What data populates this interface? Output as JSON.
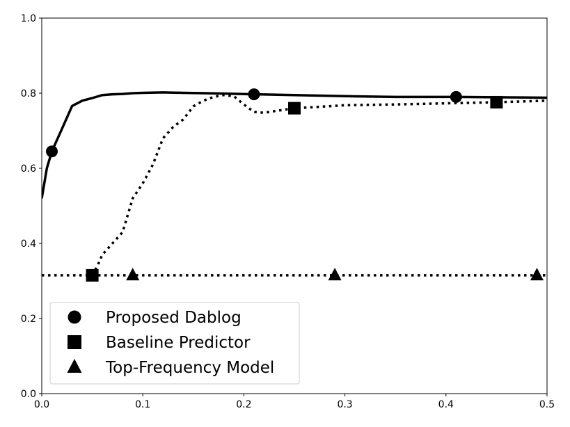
{
  "chart_data": {
    "type": "line",
    "title": "",
    "xlabel": "",
    "ylabel": "",
    "xlim": [
      0.0,
      0.5
    ],
    "ylim": [
      0.0,
      1.0
    ],
    "grid": false,
    "legend_position": "lower-left",
    "x_ticks": [
      {
        "value": 0.0,
        "label": "0.0"
      },
      {
        "value": 0.1,
        "label": "0.1"
      },
      {
        "value": 0.2,
        "label": "0.2"
      },
      {
        "value": 0.3,
        "label": "0.3"
      },
      {
        "value": 0.4,
        "label": "0.4"
      },
      {
        "value": 0.5,
        "label": "0.5"
      }
    ],
    "y_ticks": [
      {
        "value": 0.0,
        "label": "0.0"
      },
      {
        "value": 0.2,
        "label": "0.2"
      },
      {
        "value": 0.4,
        "label": "0.4"
      },
      {
        "value": 0.6,
        "label": "0.6"
      },
      {
        "value": 0.8,
        "label": "0.8"
      },
      {
        "value": 1.0,
        "label": "1.0"
      }
    ],
    "series": [
      {
        "name": "Proposed Dablog",
        "line_style": "solid",
        "marker": "circle",
        "color": "#000000",
        "points": [
          [
            0.0,
            0.52
          ],
          [
            0.005,
            0.6
          ],
          [
            0.01,
            0.645
          ],
          [
            0.02,
            0.705
          ],
          [
            0.03,
            0.766
          ],
          [
            0.04,
            0.78
          ],
          [
            0.05,
            0.787
          ],
          [
            0.06,
            0.795
          ],
          [
            0.07,
            0.797
          ],
          [
            0.08,
            0.798
          ],
          [
            0.09,
            0.8
          ],
          [
            0.1,
            0.801
          ],
          [
            0.12,
            0.802
          ],
          [
            0.14,
            0.801
          ],
          [
            0.16,
            0.8
          ],
          [
            0.18,
            0.799
          ],
          [
            0.21,
            0.797
          ],
          [
            0.25,
            0.795
          ],
          [
            0.3,
            0.792
          ],
          [
            0.35,
            0.79
          ],
          [
            0.41,
            0.79
          ],
          [
            0.45,
            0.789
          ],
          [
            0.5,
            0.788
          ]
        ],
        "marker_x": [
          0.01,
          0.21,
          0.41
        ]
      },
      {
        "name": "Baseline Predictor",
        "line_style": "dotted",
        "marker": "square",
        "color": "#000000",
        "points": [
          [
            0.05,
            0.315
          ],
          [
            0.055,
            0.34
          ],
          [
            0.06,
            0.37
          ],
          [
            0.07,
            0.4
          ],
          [
            0.08,
            0.43
          ],
          [
            0.09,
            0.52
          ],
          [
            0.1,
            0.56
          ],
          [
            0.11,
            0.61
          ],
          [
            0.12,
            0.68
          ],
          [
            0.13,
            0.71
          ],
          [
            0.14,
            0.73
          ],
          [
            0.15,
            0.765
          ],
          [
            0.16,
            0.78
          ],
          [
            0.17,
            0.79
          ],
          [
            0.18,
            0.795
          ],
          [
            0.19,
            0.792
          ],
          [
            0.2,
            0.77
          ],
          [
            0.21,
            0.75
          ],
          [
            0.22,
            0.748
          ],
          [
            0.23,
            0.752
          ],
          [
            0.25,
            0.76
          ],
          [
            0.27,
            0.763
          ],
          [
            0.3,
            0.768
          ],
          [
            0.35,
            0.77
          ],
          [
            0.4,
            0.773
          ],
          [
            0.45,
            0.776
          ],
          [
            0.5,
            0.78
          ]
        ],
        "marker_x": [
          0.05,
          0.25,
          0.45
        ]
      },
      {
        "name": "Top-Frequency Model",
        "line_style": "dotted",
        "marker": "triangle",
        "color": "#000000",
        "points": [
          [
            0.0,
            0.315
          ],
          [
            0.5,
            0.315
          ]
        ],
        "marker_x": [
          0.09,
          0.29,
          0.49
        ]
      }
    ]
  }
}
